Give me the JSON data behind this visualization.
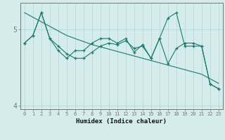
{
  "xlabel": "Humidex (Indice chaleur)",
  "bg_color": "#d4ecec",
  "line_color": "#1a7a6e",
  "grid_color": "#b8d8d8",
  "axis_color": "#777777",
  "x_values": [
    0,
    1,
    2,
    3,
    4,
    5,
    6,
    7,
    8,
    9,
    10,
    11,
    12,
    13,
    14,
    15,
    16,
    17,
    18,
    19,
    20,
    21,
    22,
    23
  ],
  "y_zigzag": [
    4.82,
    4.92,
    5.22,
    4.88,
    4.72,
    4.62,
    4.72,
    4.72,
    4.82,
    4.88,
    4.88,
    4.82,
    4.88,
    4.7,
    4.8,
    4.62,
    4.88,
    4.55,
    4.75,
    4.82,
    4.82,
    4.78,
    4.28,
    4.22
  ],
  "y_smooth": [
    4.82,
    4.92,
    5.22,
    4.88,
    4.78,
    4.68,
    4.62,
    4.62,
    4.7,
    4.78,
    4.82,
    4.8,
    4.85,
    4.75,
    4.78,
    4.62,
    4.88,
    5.15,
    5.22,
    4.78,
    4.78,
    4.78,
    4.28,
    4.22
  ],
  "y_trend": [
    5.22,
    5.16,
    5.1,
    5.04,
    4.98,
    4.92,
    4.88,
    4.84,
    4.8,
    4.77,
    4.74,
    4.71,
    4.68,
    4.65,
    4.62,
    4.59,
    4.56,
    4.53,
    4.5,
    4.47,
    4.44,
    4.41,
    4.35,
    4.29
  ],
  "ylim": [
    3.95,
    5.35
  ],
  "yticks": [
    4,
    5
  ],
  "xlim": [
    -0.5,
    23.5
  ]
}
